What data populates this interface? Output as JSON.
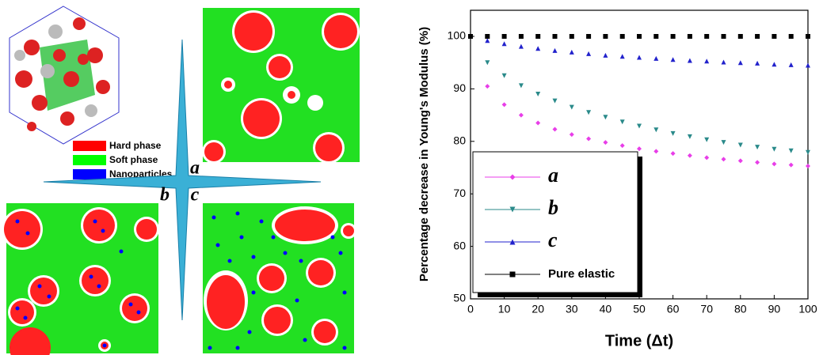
{
  "diagram": {
    "legend": [
      "Hard phase",
      "Soft phase",
      "Nanoparticles"
    ],
    "panel_labels": [
      "a",
      "b",
      "c"
    ]
  },
  "chart_data": {
    "type": "scatter",
    "xlabel": "Time (Δt)",
    "ylabel": "Percentage decrease in Young's Modulus (%)",
    "x": [
      0,
      5,
      10,
      15,
      20,
      25,
      30,
      35,
      40,
      45,
      50,
      55,
      60,
      65,
      70,
      75,
      80,
      85,
      90,
      95,
      100
    ],
    "xlim": [
      0,
      100
    ],
    "xticks": [
      0,
      10,
      20,
      30,
      40,
      50,
      60,
      70,
      80,
      90,
      100
    ],
    "ylim": [
      50,
      100
    ],
    "yticks": [
      50,
      60,
      70,
      80,
      90,
      100
    ],
    "legend": "lower left",
    "series": [
      {
        "name": "a",
        "color": "#e83ee8",
        "marker": "diamond",
        "values": [
          100,
          90.5,
          87.0,
          85.0,
          83.5,
          82.3,
          81.3,
          80.5,
          79.8,
          79.2,
          78.6,
          78.1,
          77.7,
          77.3,
          76.9,
          76.6,
          76.3,
          76.0,
          75.7,
          75.5,
          75.3
        ]
      },
      {
        "name": "b",
        "color": "#2a8a8a",
        "marker": "triangle-down",
        "values": [
          100,
          95.0,
          92.5,
          90.6,
          89.0,
          87.7,
          86.5,
          85.5,
          84.6,
          83.7,
          82.9,
          82.2,
          81.5,
          80.9,
          80.3,
          79.8,
          79.3,
          78.9,
          78.5,
          78.2,
          77.9
        ]
      },
      {
        "name": "c",
        "color": "#2222cc",
        "marker": "triangle-up",
        "values": [
          100,
          99.2,
          98.6,
          98.1,
          97.7,
          97.3,
          97.0,
          96.7,
          96.4,
          96.2,
          96.0,
          95.8,
          95.6,
          95.4,
          95.3,
          95.1,
          95.0,
          94.9,
          94.7,
          94.6,
          94.5
        ]
      },
      {
        "name": "Pure elastic",
        "color": "#000000",
        "marker": "square",
        "values": [
          100,
          100,
          100,
          100,
          100,
          100,
          100,
          100,
          100,
          100,
          100,
          100,
          100,
          100,
          100,
          100,
          100,
          100,
          100,
          100,
          100
        ]
      }
    ]
  }
}
